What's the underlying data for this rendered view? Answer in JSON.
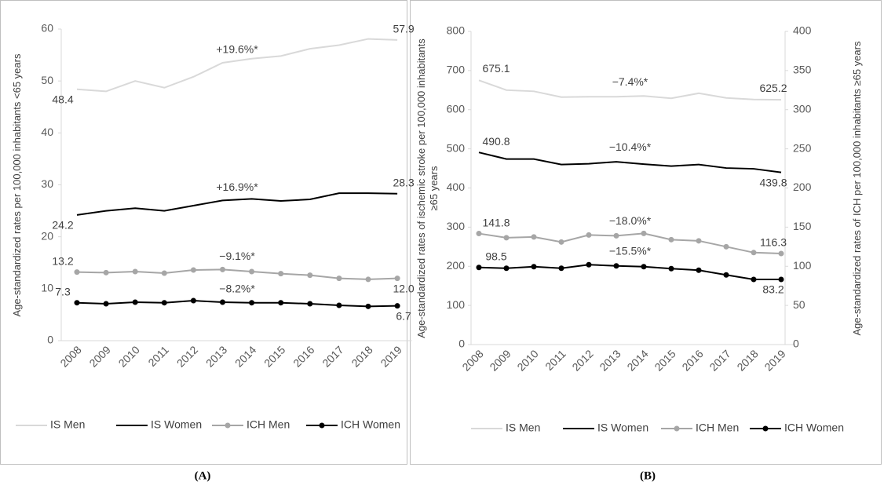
{
  "chart_data": [
    {
      "type": "line",
      "panel_label": "(A)",
      "y_label": "Age-standardized rates per 100,000 inhabitants <65 years",
      "categories": [
        "2008",
        "2009",
        "2010",
        "2011",
        "2012",
        "2013",
        "2014",
        "2015",
        "2016",
        "2017",
        "2018",
        "2019"
      ],
      "ylim": [
        0,
        60
      ],
      "yticks": [
        0,
        10,
        20,
        30,
        40,
        50,
        60
      ],
      "legend": "bottom",
      "annotations": [
        "+19.6%*",
        "+16.9%*",
        "−9.1%*",
        "−8.2%*"
      ],
      "series": [
        {
          "name": "IS Men",
          "color": "#d9d9d9",
          "marker": false,
          "values": [
            48.4,
            48.0,
            50.0,
            48.7,
            50.8,
            53.5,
            54.3,
            54.8,
            56.2,
            56.9,
            58.1,
            57.9
          ],
          "value_labels": [
            "48.4",
            null,
            null,
            null,
            null,
            null,
            null,
            null,
            null,
            null,
            null,
            "57.9"
          ]
        },
        {
          "name": "IS Women",
          "color": "#000000",
          "marker": false,
          "values": [
            24.2,
            25.0,
            25.5,
            25.0,
            26.0,
            27.0,
            27.3,
            26.9,
            27.2,
            28.4,
            28.4,
            28.3
          ],
          "value_labels": [
            "24.2",
            null,
            null,
            null,
            null,
            null,
            null,
            null,
            null,
            null,
            null,
            "28.3"
          ]
        },
        {
          "name": "ICH Men",
          "color": "#a6a6a6",
          "marker": true,
          "values": [
            13.2,
            13.1,
            13.3,
            13.0,
            13.6,
            13.7,
            13.3,
            12.9,
            12.6,
            12.0,
            11.8,
            12.0
          ],
          "value_labels": [
            "13.2",
            null,
            null,
            null,
            null,
            null,
            null,
            null,
            null,
            null,
            null,
            "12.0"
          ]
        },
        {
          "name": "ICH Women",
          "color": "#000000",
          "marker": true,
          "values": [
            7.3,
            7.1,
            7.4,
            7.3,
            7.7,
            7.4,
            7.3,
            7.3,
            7.1,
            6.8,
            6.6,
            6.7
          ],
          "value_labels": [
            "7.3",
            null,
            null,
            null,
            null,
            null,
            null,
            null,
            null,
            null,
            null,
            "6.7"
          ]
        }
      ]
    },
    {
      "type": "line",
      "panel_label": "(B)",
      "y_label": "Age-standardized rates of ischemic stroke per 100,000 inhabitants ≥65 years",
      "y2_label": "Age-standardized rates of ICH per 100,000 inhabitants ≥65 years",
      "categories": [
        "2008",
        "2009",
        "2010",
        "2011",
        "2012",
        "2013",
        "2014",
        "2015",
        "2016",
        "2017",
        "2018",
        "2019"
      ],
      "ylim": [
        0,
        800
      ],
      "yticks": [
        0,
        100,
        200,
        300,
        400,
        500,
        600,
        700,
        800
      ],
      "y2lim": [
        0,
        400
      ],
      "y2ticks": [
        0,
        50,
        100,
        150,
        200,
        250,
        300,
        350,
        400
      ],
      "legend": "bottom",
      "annotations": [
        "−7.4%*",
        "−10.4%*",
        "−18.0%*",
        "−15.5%*"
      ],
      "series": [
        {
          "name": "IS Men",
          "color": "#d9d9d9",
          "marker": false,
          "values": [
            675.1,
            650,
            647,
            632,
            633,
            633,
            635,
            629,
            642,
            630,
            626,
            625.2
          ],
          "value_labels": [
            "675.1",
            null,
            null,
            null,
            null,
            null,
            null,
            null,
            null,
            null,
            null,
            "625.2"
          ]
        },
        {
          "name": "IS Women",
          "color": "#000000",
          "marker": false,
          "values": [
            490.8,
            474,
            474,
            460,
            462,
            467,
            461,
            456,
            460,
            451,
            449,
            439.8
          ],
          "value_labels": [
            "490.8",
            null,
            null,
            null,
            null,
            null,
            null,
            null,
            null,
            null,
            null,
            "439.8"
          ]
        },
        {
          "name": "ICH Men",
          "color": "#a6a6a6",
          "marker": true,
          "axis": "y2",
          "values": [
            141.8,
            136.5,
            137.5,
            131,
            140,
            139,
            142,
            134,
            132.5,
            125,
            117.5,
            116.3
          ],
          "value_labels": [
            "141.8",
            null,
            null,
            null,
            null,
            null,
            null,
            null,
            null,
            null,
            null,
            "116.3"
          ]
        },
        {
          "name": "ICH Women",
          "color": "#000000",
          "marker": true,
          "axis": "y2",
          "values": [
            98.5,
            97.5,
            99.5,
            97.5,
            102,
            100.5,
            99.5,
            97,
            95,
            89,
            83.2,
            83.2
          ],
          "value_labels": [
            "98.5",
            null,
            null,
            null,
            null,
            null,
            null,
            null,
            null,
            null,
            null,
            "83.2"
          ]
        }
      ]
    }
  ]
}
